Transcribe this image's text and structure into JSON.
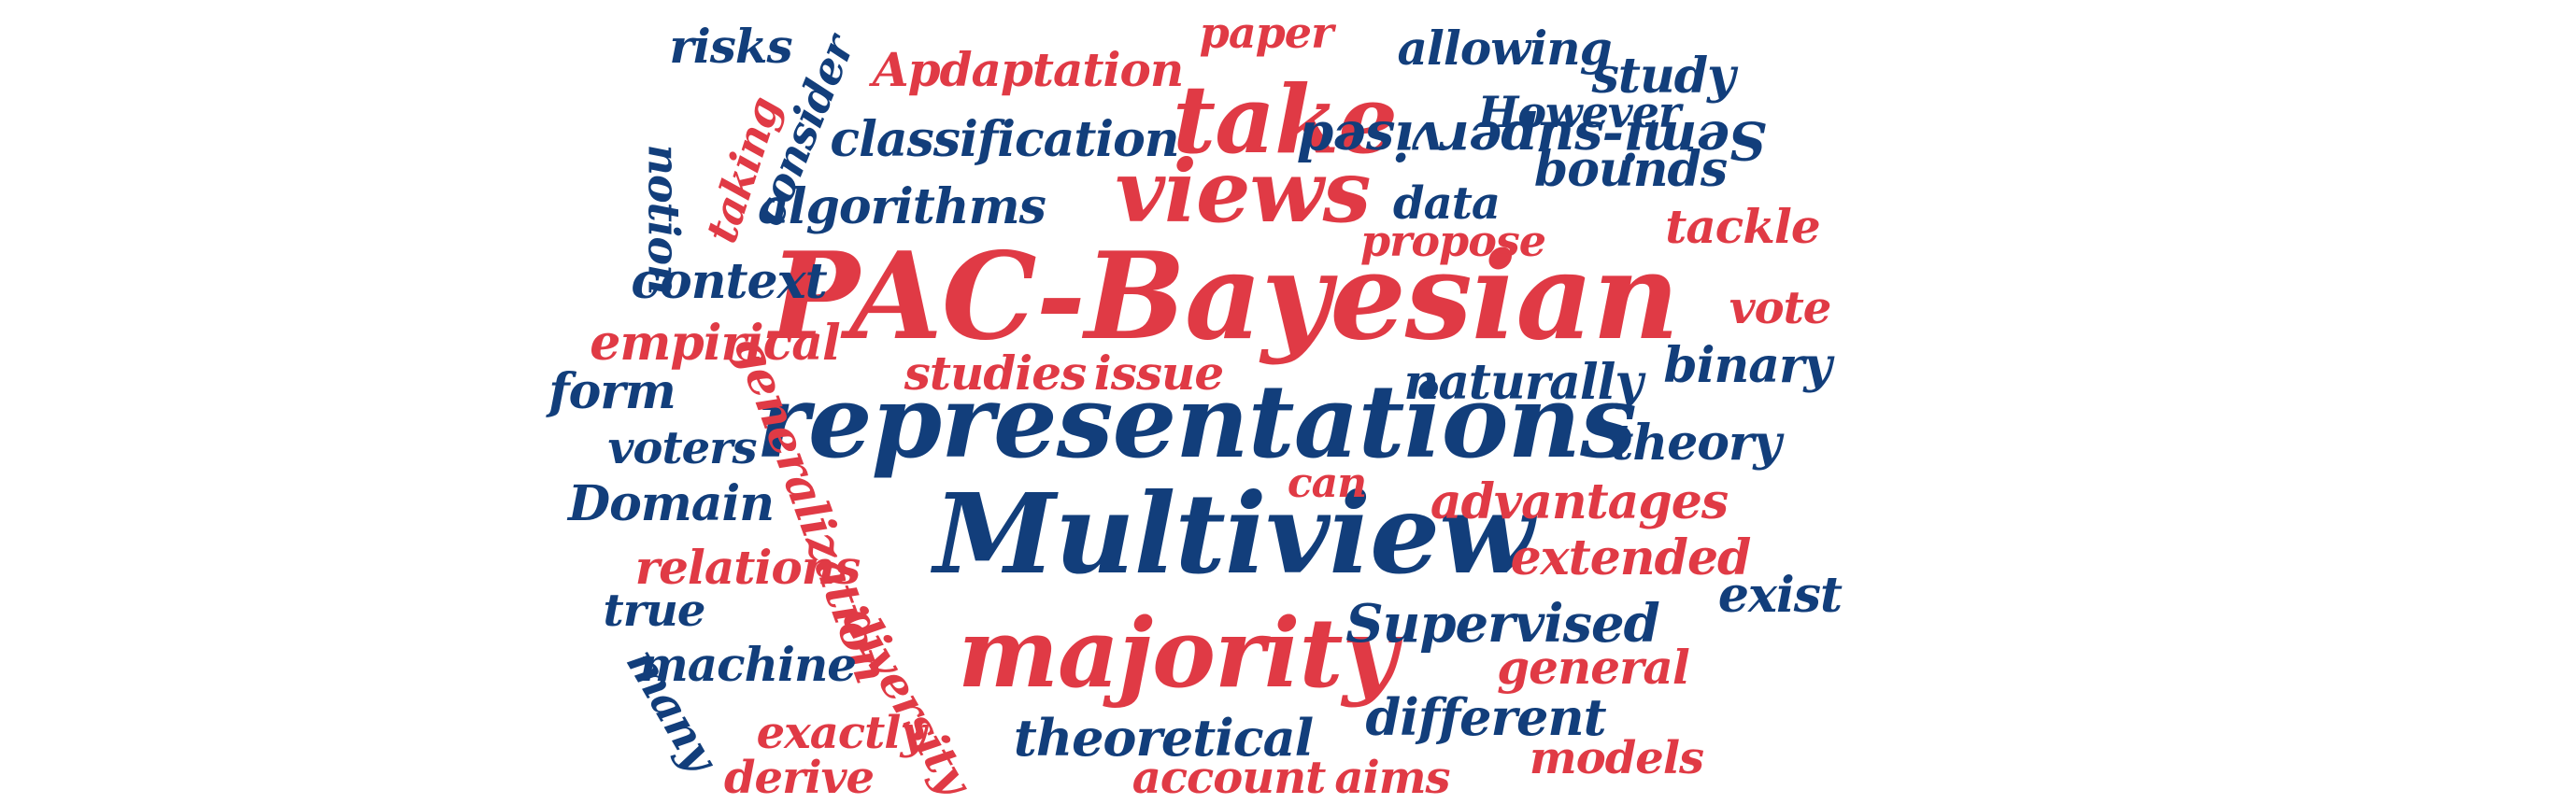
{
  "palette": {
    "red": "#e03a45",
    "blue": "#123e7b",
    "background": "#ffffff"
  },
  "words": [
    {
      "key": "pac-bayesian",
      "text": "PAC-Bayesian",
      "color": "red"
    },
    {
      "key": "representations",
      "text": "representations",
      "color": "blue"
    },
    {
      "key": "multiview",
      "text": "Multiview",
      "color": "blue"
    },
    {
      "key": "majority",
      "text": "majority",
      "color": "red"
    },
    {
      "key": "take",
      "text": "take",
      "color": "red"
    },
    {
      "key": "views",
      "text": "views",
      "color": "red"
    },
    {
      "key": "risks",
      "text": "risks",
      "color": "blue"
    },
    {
      "key": "apdaptation",
      "text": "Apdaptation",
      "color": "red"
    },
    {
      "key": "paper",
      "text": "paper",
      "color": "red"
    },
    {
      "key": "allowing",
      "text": "allowing",
      "color": "blue"
    },
    {
      "key": "study",
      "text": "study",
      "color": "blue"
    },
    {
      "key": "semi-supervised",
      "text": "Semi-supervised",
      "color": "blue"
    },
    {
      "key": "however",
      "text": "However",
      "color": "blue"
    },
    {
      "key": "consider",
      "text": "consider",
      "color": "blue"
    },
    {
      "key": "taking",
      "text": "taking",
      "color": "red"
    },
    {
      "key": "notion",
      "text": "notion",
      "color": "blue"
    },
    {
      "key": "classification",
      "text": "classification",
      "color": "blue"
    },
    {
      "key": "bounds",
      "text": "bounds",
      "color": "blue"
    },
    {
      "key": "algorithms",
      "text": "algorithms",
      "color": "blue"
    },
    {
      "key": "data",
      "text": "data",
      "color": "blue"
    },
    {
      "key": "tackle",
      "text": "tackle",
      "color": "red"
    },
    {
      "key": "propose",
      "text": "propose",
      "color": "red"
    },
    {
      "key": "context",
      "text": "context",
      "color": "blue"
    },
    {
      "key": "vote",
      "text": "vote",
      "color": "red"
    },
    {
      "key": "empirical",
      "text": "empirical",
      "color": "red"
    },
    {
      "key": "binary",
      "text": "binary",
      "color": "blue"
    },
    {
      "key": "studies",
      "text": "studies",
      "color": "red"
    },
    {
      "key": "issue",
      "text": "issue",
      "color": "red"
    },
    {
      "key": "naturally",
      "text": "naturally",
      "color": "blue"
    },
    {
      "key": "form",
      "text": "form",
      "color": "blue"
    },
    {
      "key": "generalization",
      "text": "generalization",
      "color": "red"
    },
    {
      "key": "voters",
      "text": "voters",
      "color": "blue"
    },
    {
      "key": "theory",
      "text": "theory",
      "color": "blue"
    },
    {
      "key": "can",
      "text": "can",
      "color": "red"
    },
    {
      "key": "domain",
      "text": "Domain",
      "color": "blue"
    },
    {
      "key": "advantages",
      "text": "advantages",
      "color": "red"
    },
    {
      "key": "relations",
      "text": "relations",
      "color": "red"
    },
    {
      "key": "extended",
      "text": "extended",
      "color": "red"
    },
    {
      "key": "true",
      "text": "true",
      "color": "blue"
    },
    {
      "key": "exist",
      "text": "exist",
      "color": "blue"
    },
    {
      "key": "supervised",
      "text": "Supervised",
      "color": "blue"
    },
    {
      "key": "machine",
      "text": "machine",
      "color": "blue"
    },
    {
      "key": "diversity",
      "text": "diversity",
      "color": "red"
    },
    {
      "key": "general",
      "text": "general",
      "color": "red"
    },
    {
      "key": "many",
      "text": "many",
      "color": "blue"
    },
    {
      "key": "exactly",
      "text": "exactly",
      "color": "red"
    },
    {
      "key": "theoretical",
      "text": "theoretical",
      "color": "blue"
    },
    {
      "key": "different",
      "text": "different",
      "color": "blue"
    },
    {
      "key": "derive",
      "text": "derive",
      "color": "red"
    },
    {
      "key": "account",
      "text": "account",
      "color": "red"
    },
    {
      "key": "aims",
      "text": "aims",
      "color": "red"
    },
    {
      "key": "models",
      "text": "models",
      "color": "red"
    }
  ]
}
